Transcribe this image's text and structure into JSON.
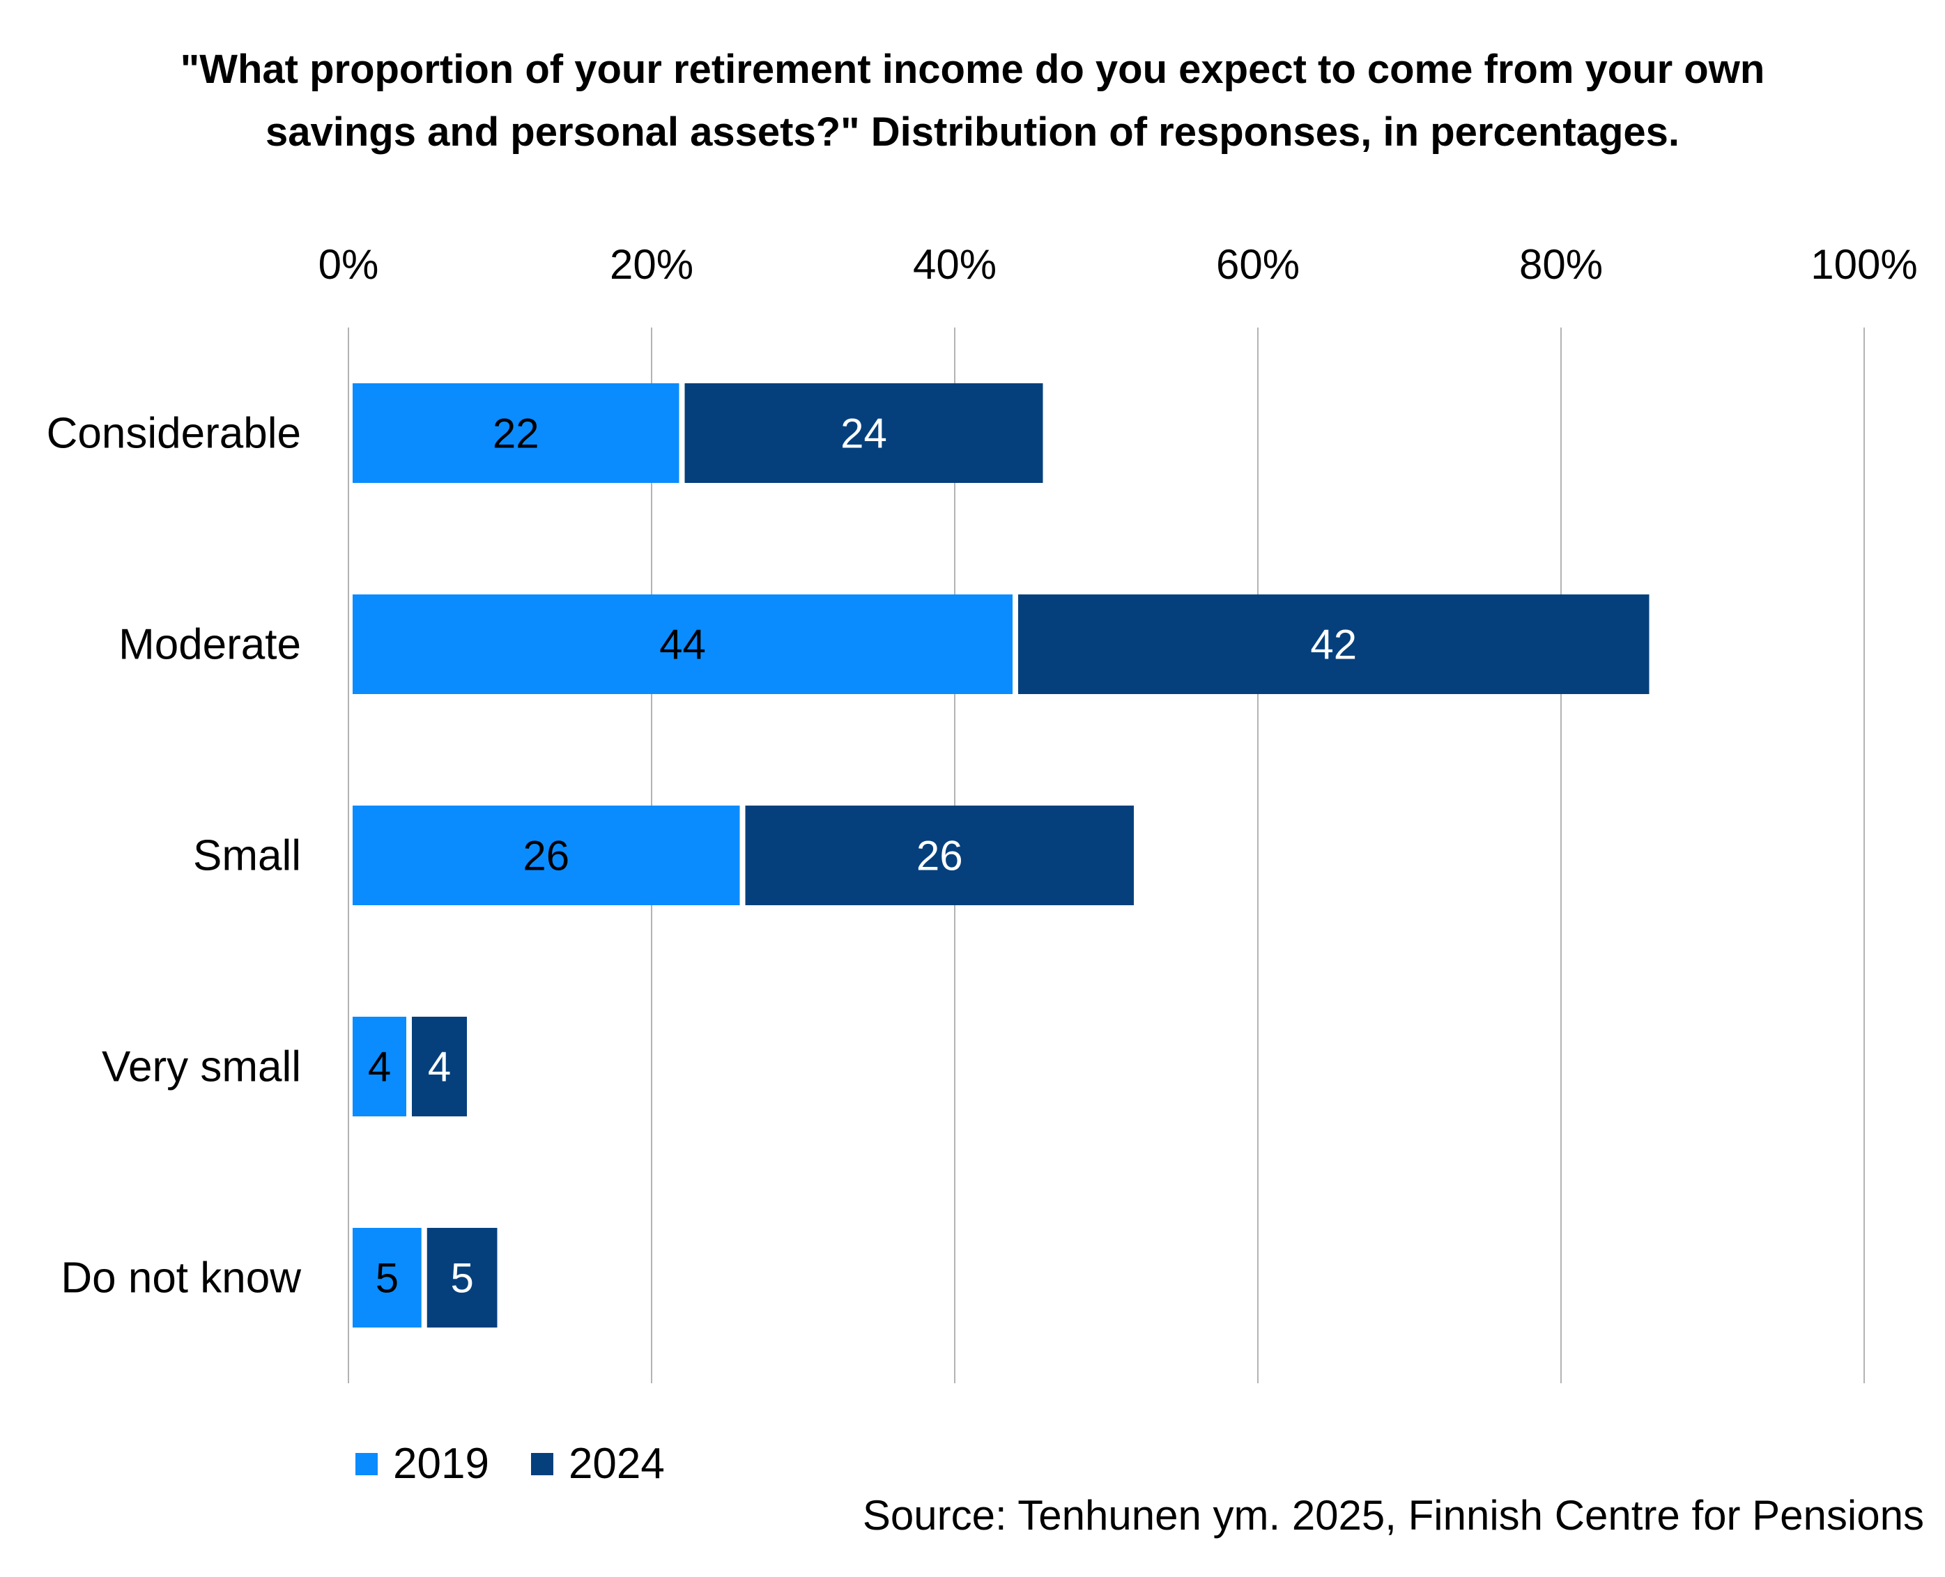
{
  "title_lines": [
    "\"What proportion of your retirement income do you expect to come from your own",
    "savings and personal assets?\" Distribution of responses, in percentages."
  ],
  "source": "Source: Tenhunen ym. 2025, Finnish Centre for Pensions",
  "colors": {
    "s2019": "#0a8cff",
    "s2024": "#05407d",
    "grid": "#b3b3b3"
  },
  "chart_data": {
    "type": "bar",
    "orientation": "horizontal",
    "stacked": true,
    "title": "\"What proportion of your retirement income do you expect to come from your own savings and personal assets?\" Distribution of responses, in percentages.",
    "categories": [
      "Considerable",
      "Moderate",
      "Small",
      "Very small",
      "Do not know"
    ],
    "series": [
      {
        "name": "2019",
        "values": [
          22,
          44,
          26,
          4,
          5
        ]
      },
      {
        "name": "2024",
        "values": [
          24,
          42,
          26,
          4,
          5
        ]
      }
    ],
    "xlim": [
      0,
      100
    ],
    "x_ticks": [
      "0%",
      "20%",
      "40%",
      "60%",
      "80%",
      "100%"
    ],
    "xaxis_position": "top",
    "grid": true,
    "legend": "bottom-left"
  }
}
